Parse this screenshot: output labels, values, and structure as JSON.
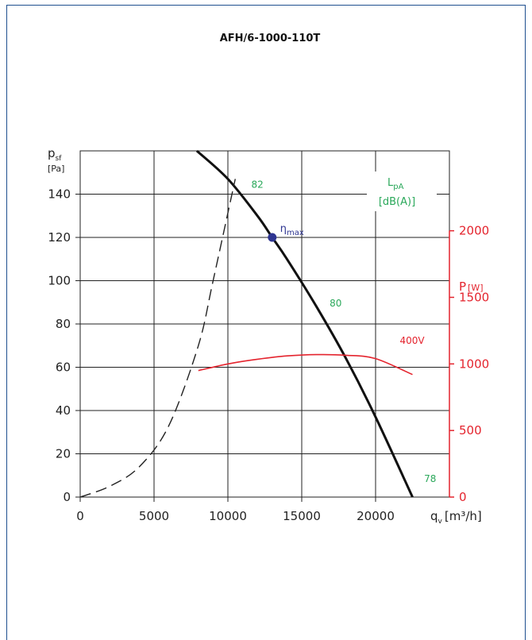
{
  "chart_data": {
    "type": "line",
    "title": "AFH/6-1000-110T",
    "x_axis": {
      "label_main": "q",
      "label_sub": "v",
      "label_unit": "[m³/h]",
      "ticks": [
        0,
        5000,
        10000,
        15000,
        20000
      ],
      "tick_labels": [
        "0",
        "5000",
        "10000",
        "15000",
        "20000"
      ],
      "range": [
        0,
        25000
      ]
    },
    "y_axis_left": {
      "label_main": "p",
      "label_sub": "sf",
      "label_unit": "[Pa]",
      "ticks": [
        0,
        20,
        40,
        60,
        80,
        100,
        120,
        140
      ],
      "tick_labels": [
        "0",
        "20",
        "40",
        "60",
        "80",
        "100",
        "120",
        "140"
      ],
      "range": [
        0,
        160
      ]
    },
    "y_axis_right": {
      "label_main": "P",
      "label_unit": "[W]",
      "ticks": [
        0,
        500,
        1000,
        1500,
        2000
      ],
      "tick_labels": [
        "0",
        "500",
        "1000",
        "1500",
        "2000"
      ],
      "range": [
        0,
        2600
      ]
    },
    "lpa_box": {
      "line1_main": "L",
      "line1_sub": "pA",
      "line2": "[dB(A)]"
    },
    "series": [
      {
        "kind": "fan-curve",
        "color": "#111111",
        "points": [
          [
            7900,
            160
          ],
          [
            10000,
            147
          ],
          [
            12000,
            130
          ],
          [
            13000,
            120
          ],
          [
            14000,
            110
          ],
          [
            16000,
            88
          ],
          [
            18000,
            64
          ],
          [
            20000,
            37
          ],
          [
            22500,
            0
          ]
        ]
      },
      {
        "kind": "system-curve",
        "color": "#222222",
        "dashed": true,
        "points": [
          [
            0,
            0
          ],
          [
            2000,
            5
          ],
          [
            4000,
            14
          ],
          [
            6000,
            33
          ],
          [
            8000,
            70
          ],
          [
            9000,
            100
          ],
          [
            10500,
            147
          ]
        ]
      },
      {
        "name": "400V",
        "kind": "power",
        "axis": "right",
        "color": "#e4242e",
        "points": [
          [
            8000,
            950
          ],
          [
            10000,
            1000
          ],
          [
            12000,
            1035
          ],
          [
            14000,
            1060
          ],
          [
            16000,
            1070
          ],
          [
            18000,
            1065
          ],
          [
            20000,
            1040
          ],
          [
            22500,
            920
          ]
        ]
      }
    ],
    "sound_labels": [
      {
        "text": "82",
        "x": 12000,
        "y": 143
      },
      {
        "text": "80",
        "x": 17300,
        "y": 88
      },
      {
        "text": "78",
        "x": 23700,
        "y": 7
      }
    ],
    "eta_point": {
      "x": 13000,
      "y": 120,
      "label_main": "η",
      "label_sub": "max",
      "color": "#2e3591"
    },
    "grid": true
  }
}
